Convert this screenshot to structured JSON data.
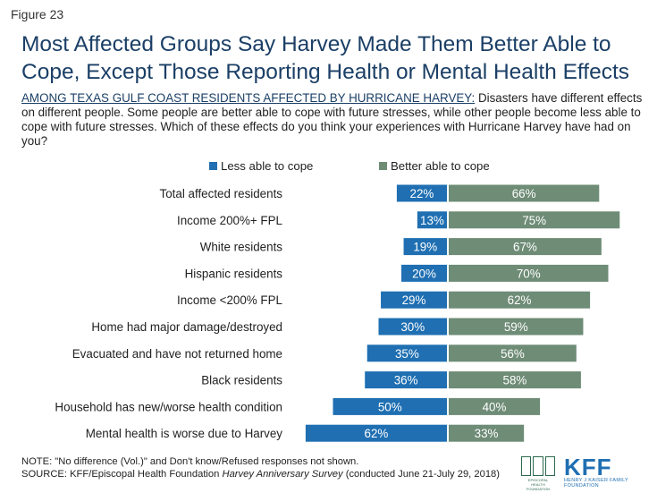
{
  "figure_label": "Figure 23",
  "title": "Most Affected Groups Say Harvey Made Them Better Able to Cope, Except Those Reporting Health or Mental Health Effects",
  "subtitle_lead": "AMONG TEXAS GULF COAST RESIDENTS AFFECTED BY HURRICANE HARVEY:",
  "subtitle_body": " Disasters have different effects on different people. Some people are better able to cope with future stresses, while other people become less able to cope with future stresses. Which of these effects do you think your experiences with Hurricane Harvey have had on you?",
  "colors": {
    "less": "#1f6fb2",
    "better": "#6e8c76"
  },
  "chart_data": {
    "type": "bar",
    "orientation": "horizontal-diverging",
    "categories": [
      "Total affected residents",
      "Income 200%+ FPL",
      "White residents",
      "Hispanic residents",
      "Income <200% FPL",
      "Home had major damage/destroyed",
      "Evacuated and have not returned home",
      "Black residents",
      "Household has new/worse health condition",
      "Mental health is worse due to Harvey"
    ],
    "series": [
      {
        "name": "Less able to cope",
        "values": [
          22,
          13,
          19,
          20,
          29,
          30,
          35,
          36,
          50,
          62
        ],
        "labels": [
          "22%",
          "13%",
          "19%",
          "20%",
          "29%",
          "30%",
          "35%",
          "36%",
          "50%",
          "62%"
        ]
      },
      {
        "name": "Better able to cope",
        "values": [
          66,
          75,
          67,
          70,
          62,
          59,
          56,
          58,
          40,
          33
        ],
        "labels": [
          "66%",
          "75%",
          "67%",
          "70%",
          "62%",
          "59%",
          "56%",
          "58%",
          "40%",
          "33%"
        ]
      }
    ],
    "legend_position": "top"
  },
  "notes": {
    "note": "NOTE: \"No difference (Vol.)\" and Don't know/Refused responses not shown.",
    "source_prefix": "SOURCE: KFF/Episcopal Health Foundation ",
    "source_title": "Harvey Anniversary Survey",
    "source_suffix": " (conducted June 21-July 29, 2018)"
  },
  "logos": {
    "ehf_text": "EPISCOPAL HEALTH FOUNDATION",
    "kff_text": "KFF",
    "kff_sub": "HENRY J KAISER FAMILY FOUNDATION"
  }
}
